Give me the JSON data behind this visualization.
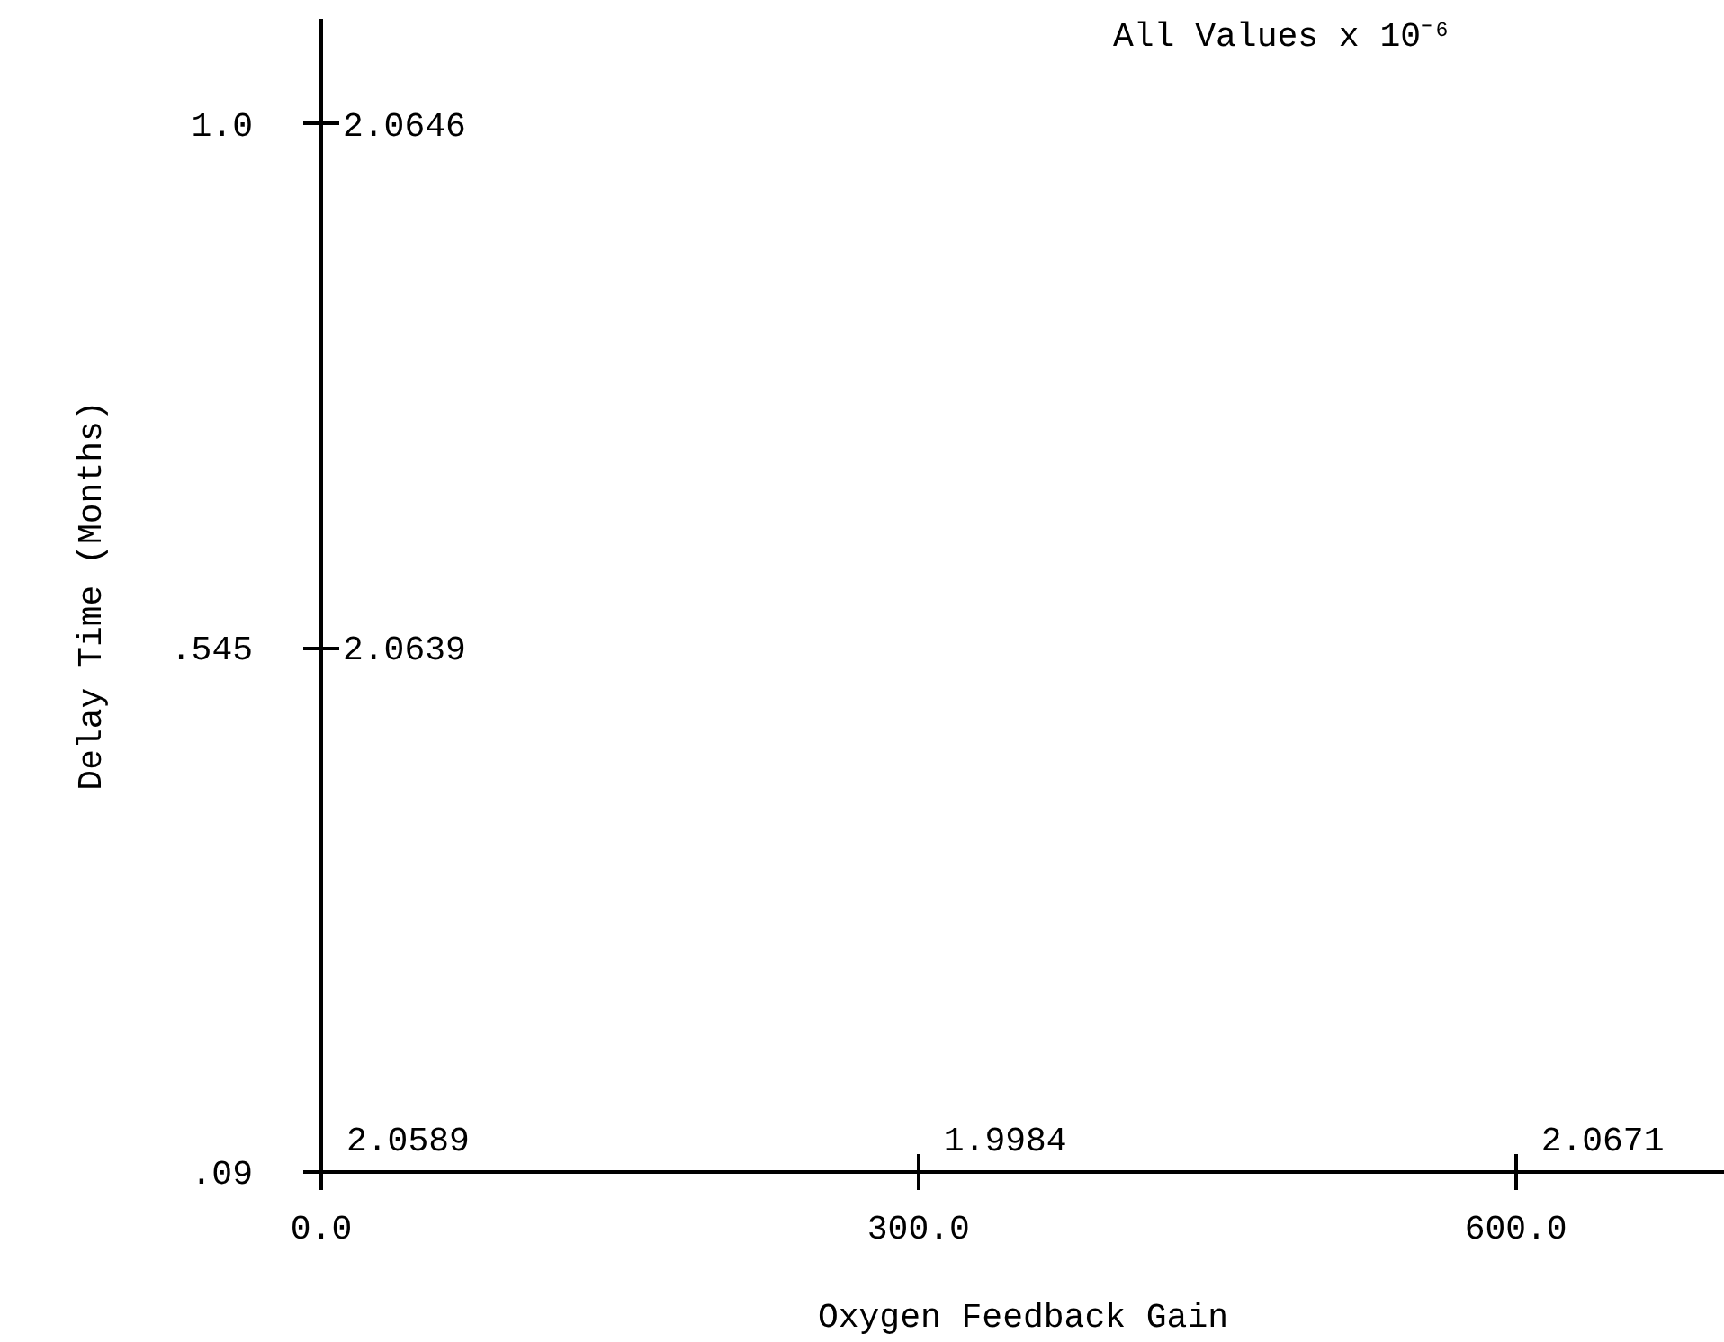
{
  "chart_data": {
    "type": "heatmap",
    "xlabel": "Oxygen Feedback Gain",
    "ylabel": "Delay Time (Months)",
    "categories": [
      "0.0",
      "300.0",
      "600.0"
    ],
    "y_categories": [
      "1.0",
      ".545",
      ".09"
    ],
    "cells": [
      [
        2.0646,
        null,
        null
      ],
      [
        2.0639,
        null,
        null
      ],
      [
        2.0589,
        1.9984,
        2.0671
      ]
    ],
    "data_labels": true,
    "annotations": [
      "All Values x 10⁻⁶"
    ]
  }
}
